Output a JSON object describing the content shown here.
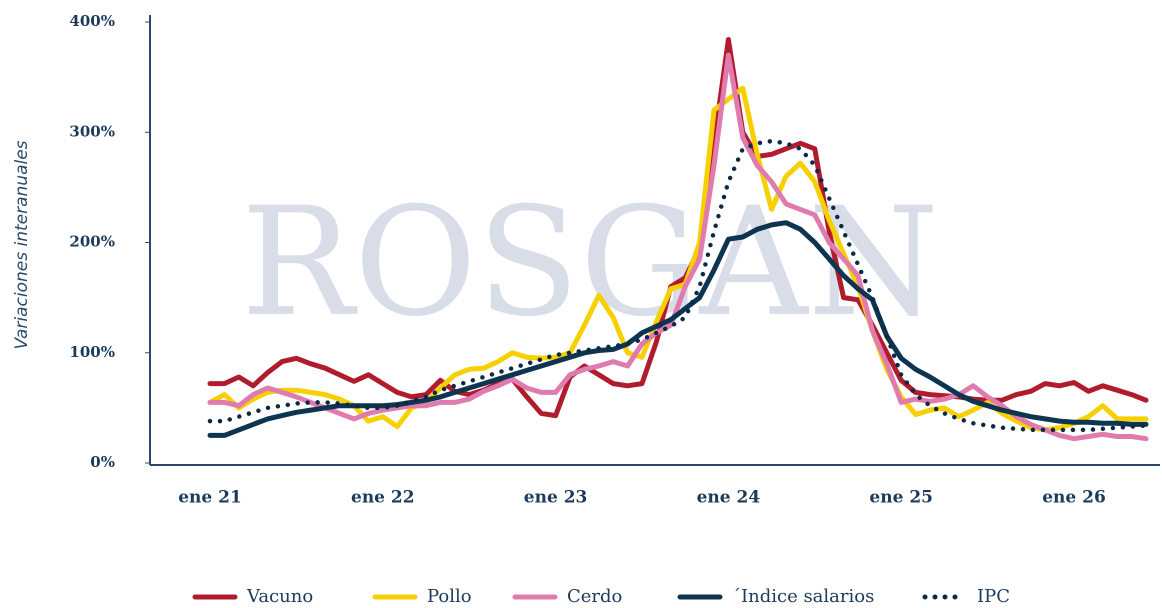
{
  "chart_data": {
    "type": "line",
    "watermark": "ROSGAN",
    "y_label": "Variaciones interanuales",
    "categories": [
      "ene 21",
      null,
      null,
      null,
      null,
      null,
      null,
      null,
      null,
      null,
      null,
      null,
      "ene 22",
      null,
      null,
      null,
      null,
      null,
      null,
      null,
      null,
      null,
      null,
      null,
      "ene 23",
      null,
      null,
      null,
      null,
      null,
      null,
      null,
      null,
      null,
      null,
      null,
      "ene 24",
      null,
      null,
      null,
      null,
      null,
      null,
      null,
      null,
      null,
      null,
      null,
      "ene 25",
      null,
      null,
      null,
      null,
      null,
      null,
      null,
      null,
      null,
      null,
      null,
      "ene 26",
      null,
      null,
      null,
      null,
      null
    ],
    "series": [
      {
        "name": "Vacuno",
        "color": "#b01c2e",
        "style": "solid",
        "values": [
          72,
          72,
          78,
          70,
          82,
          92,
          95,
          90,
          86,
          80,
          74,
          80,
          72,
          64,
          60,
          62,
          75,
          65,
          62,
          66,
          72,
          76,
          60,
          45,
          43,
          78,
          88,
          80,
          72,
          70,
          72,
          110,
          160,
          168,
          195,
          290,
          384,
          300,
          278,
          280,
          285,
          290,
          285,
          210,
          150,
          148,
          125,
          100,
          75,
          64,
          62,
          61,
          60,
          58,
          57,
          57,
          62,
          65,
          72,
          70,
          73,
          65,
          70,
          66,
          62,
          57
        ]
      },
      {
        "name": "Pollo",
        "color": "#f7d000",
        "style": "solid",
        "values": [
          55,
          62,
          50,
          58,
          64,
          66,
          66,
          64,
          62,
          58,
          52,
          38,
          42,
          33,
          50,
          55,
          68,
          80,
          85,
          86,
          92,
          100,
          96,
          95,
          96,
          100,
          125,
          152,
          132,
          100,
          96,
          128,
          158,
          162,
          200,
          320,
          330,
          340,
          280,
          230,
          260,
          272,
          255,
          220,
          190,
          160,
          120,
          85,
          60,
          44,
          48,
          50,
          42,
          48,
          55,
          45,
          38,
          32,
          30,
          32,
          36,
          42,
          52,
          40,
          40,
          40
        ]
      },
      {
        "name": "Cerdo",
        "color": "#e07bb0",
        "style": "solid",
        "values": [
          55,
          55,
          52,
          62,
          68,
          64,
          60,
          55,
          50,
          45,
          40,
          45,
          48,
          50,
          52,
          52,
          55,
          55,
          58,
          65,
          70,
          76,
          68,
          64,
          64,
          80,
          85,
          88,
          92,
          88,
          108,
          118,
          125,
          160,
          185,
          270,
          370,
          295,
          270,
          255,
          235,
          230,
          225,
          200,
          185,
          170,
          120,
          90,
          55,
          58,
          56,
          58,
          62,
          70,
          60,
          52,
          42,
          35,
          30,
          25,
          22,
          24,
          26,
          24,
          24,
          22
        ]
      },
      {
        "name": "´Indice salarios",
        "color": "#0d3450",
        "style": "solid",
        "values": [
          25,
          25,
          30,
          35,
          40,
          43,
          46,
          48,
          50,
          52,
          52,
          52,
          52,
          53,
          55,
          57,
          60,
          64,
          68,
          72,
          76,
          80,
          84,
          88,
          92,
          96,
          100,
          102,
          103,
          108,
          118,
          124,
          130,
          140,
          150,
          175,
          203,
          205,
          212,
          216,
          218,
          212,
          200,
          185,
          170,
          158,
          148,
          115,
          95,
          85,
          78,
          70,
          62,
          56,
          52,
          48,
          45,
          42,
          40,
          38,
          37,
          37,
          36,
          36,
          35,
          35
        ]
      },
      {
        "name": "IPC",
        "color": "#0d2a45",
        "style": "dotted",
        "values": [
          38,
          38,
          42,
          46,
          50,
          52,
          54,
          55,
          55,
          54,
          52,
          50,
          50,
          52,
          56,
          60,
          66,
          70,
          74,
          78,
          82,
          86,
          90,
          94,
          98,
          100,
          102,
          104,
          106,
          108,
          112,
          118,
          124,
          132,
          160,
          210,
          255,
          285,
          290,
          292,
          290,
          285,
          270,
          240,
          210,
          180,
          150,
          115,
          80,
          62,
          52,
          45,
          40,
          36,
          34,
          32,
          31,
          30,
          30,
          30,
          30,
          30,
          31,
          32,
          33,
          34
        ]
      }
    ],
    "ylim": [
      0,
      400
    ],
    "yticks": [
      {
        "value": 0,
        "label": "0%"
      },
      {
        "value": 100,
        "label": "100%"
      },
      {
        "value": 200,
        "label": "200%"
      },
      {
        "value": 300,
        "label": "300%"
      },
      {
        "value": 400,
        "label": "400%"
      }
    ],
    "legend": "bottom"
  }
}
